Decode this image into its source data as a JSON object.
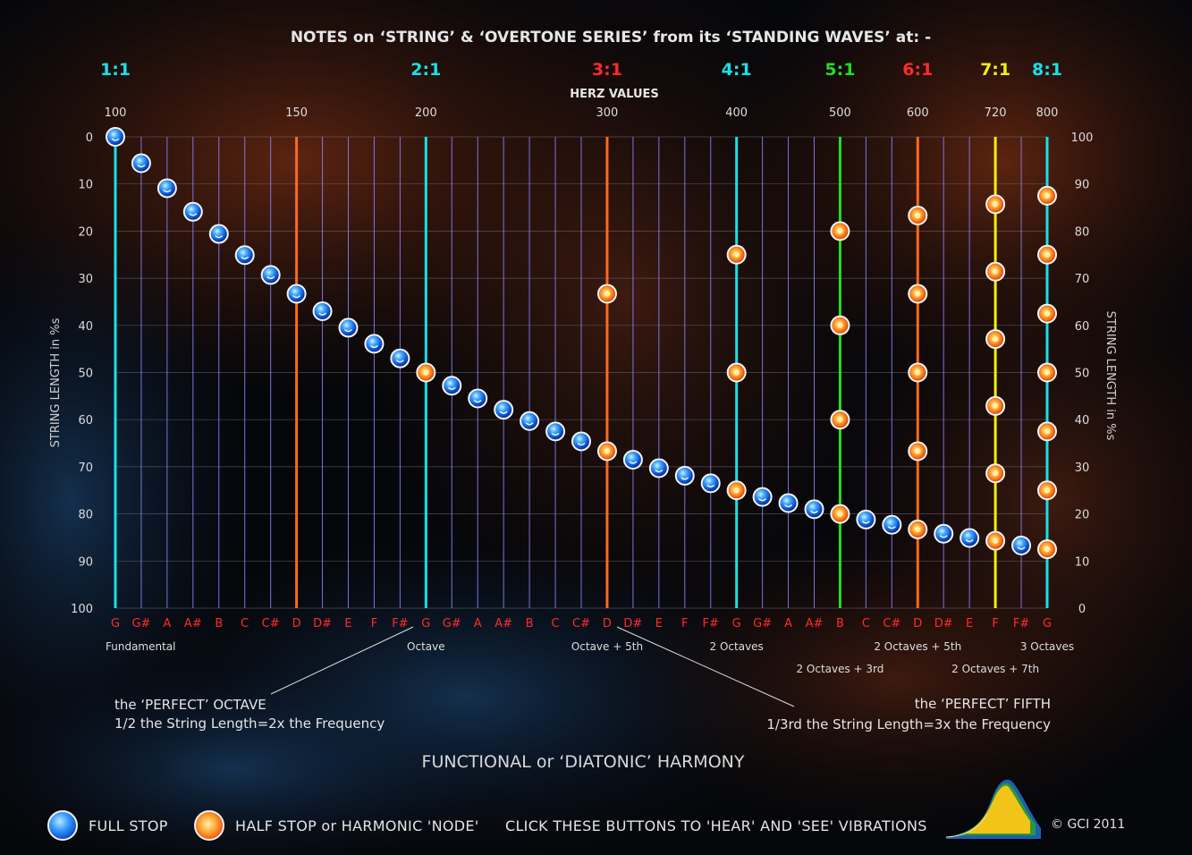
{
  "title": "NOTES on ‘STRING’ & ‘OVERTONE SERIES’ from its ‘STANDING WAVES’ at: -",
  "herz_label": "HERZ  VALUES",
  "left_axis_label": "STRING LENGTH in %s",
  "right_axis_label": "STRING LENGTH in %s",
  "colors": {
    "cyan": "#19e0e8",
    "orange": "#ff6a1a",
    "green": "#22dd22",
    "yellow": "#f5ee10",
    "red_text": "#ff2a2a",
    "grid_purple": "#8a86ff"
  },
  "ratios": [
    {
      "label": "1:1",
      "color": "#19e0e8",
      "at": 0
    },
    {
      "label": "2:1",
      "color": "#19e0e8",
      "at": 12
    },
    {
      "label": "3:1",
      "color": "#ff2a2a",
      "at": 19
    },
    {
      "label": "4:1",
      "color": "#19e0e8",
      "at": 24
    },
    {
      "label": "5:1",
      "color": "#22dd22",
      "at": 28
    },
    {
      "label": "6:1",
      "color": "#ff2a2a",
      "at": 31
    },
    {
      "label": "7:1",
      "color": "#f5ee10",
      "at": 34
    },
    {
      "label": "8:1",
      "color": "#19e0e8",
      "at": 36
    }
  ],
  "herz_ticks": [
    {
      "label": "100",
      "at": 0
    },
    {
      "label": "150",
      "at": 7
    },
    {
      "label": "200",
      "at": 12
    },
    {
      "label": "300",
      "at": 19
    },
    {
      "label": "400",
      "at": 24
    },
    {
      "label": "500",
      "at": 28
    },
    {
      "label": "600",
      "at": 31
    },
    {
      "label": "720",
      "at": 34
    },
    {
      "label": "800",
      "at": 36
    }
  ],
  "left_ticks": [
    "0",
    "10",
    "20",
    "30",
    "40",
    "50",
    "60",
    "70",
    "80",
    "90",
    "100"
  ],
  "right_ticks": [
    "100",
    "90",
    "80",
    "70",
    "60",
    "50",
    "40",
    "30",
    "20",
    "10",
    "0"
  ],
  "notes": [
    "G",
    "G#",
    "A",
    "A#",
    "B",
    "C",
    "C#",
    "D",
    "D#",
    "E",
    "F",
    "F#",
    "G",
    "G#",
    "A",
    "A#",
    "B",
    "C",
    "C#",
    "D",
    "D#",
    "E",
    "F",
    "F#",
    "G",
    "G#",
    "A",
    "A#",
    "B",
    "C",
    "C#",
    "D",
    "D#",
    "E",
    "F",
    "F#",
    "G"
  ],
  "colored_lines": [
    {
      "at": 0,
      "color": "#19e0e8"
    },
    {
      "at": 7,
      "color": "#ff6a1a"
    },
    {
      "at": 12,
      "color": "#19e0e8"
    },
    {
      "at": 19,
      "color": "#ff6a1a"
    },
    {
      "at": 24,
      "color": "#19e0e8"
    },
    {
      "at": 28,
      "color": "#22dd22"
    },
    {
      "at": 31,
      "color": "#ff6a1a"
    },
    {
      "at": 34,
      "color": "#f5ee10"
    },
    {
      "at": 36,
      "color": "#19e0e8"
    }
  ],
  "chart_data": {
    "type": "scatter",
    "title": "NOTES on ‘STRING’ & ‘OVERTONE SERIES’ from its ‘STANDING WAVES’ at: -",
    "ylabel": "STRING LENGTH in %s",
    "ylim": [
      0,
      100
    ],
    "full_stops": [
      {
        "note": "G",
        "y": 0
      },
      {
        "note": "G#",
        "y": 5.6
      },
      {
        "note": "A",
        "y": 10.9
      },
      {
        "note": "A#",
        "y": 15.9
      },
      {
        "note": "B",
        "y": 20.6
      },
      {
        "note": "C",
        "y": 25.1
      },
      {
        "note": "C#",
        "y": 29.3
      },
      {
        "note": "D",
        "y": 33.3
      },
      {
        "note": "D#",
        "y": 37.0
      },
      {
        "note": "E",
        "y": 40.5
      },
      {
        "note": "F",
        "y": 43.9
      },
      {
        "note": "F#",
        "y": 47.0
      },
      {
        "note": "G#",
        "y": 52.8
      },
      {
        "note": "A",
        "y": 55.5
      },
      {
        "note": "A#",
        "y": 57.9
      },
      {
        "note": "B",
        "y": 60.3
      },
      {
        "note": "C",
        "y": 62.5
      },
      {
        "note": "C#",
        "y": 64.6
      },
      {
        "note": "D#",
        "y": 68.5
      },
      {
        "note": "E",
        "y": 70.3
      },
      {
        "note": "F",
        "y": 71.9
      },
      {
        "note": "F#",
        "y": 73.5
      },
      {
        "note": "G#",
        "y": 76.4
      },
      {
        "note": "A",
        "y": 77.7
      },
      {
        "note": "A#",
        "y": 79.0
      },
      {
        "note": "C",
        "y": 81.2
      },
      {
        "note": "C#",
        "y": 82.3
      },
      {
        "note": "D#",
        "y": 84.2
      },
      {
        "note": "E",
        "y": 85.1
      },
      {
        "note": "F#",
        "y": 86.7
      }
    ],
    "half_stops": [
      {
        "note": "G",
        "ratio": "2:1",
        "y": [
          50
        ]
      },
      {
        "note": "D",
        "ratio": "3:1",
        "y": [
          33.3,
          66.7
        ]
      },
      {
        "note": "G",
        "ratio": "4:1",
        "y": [
          25,
          50,
          75
        ]
      },
      {
        "note": "B",
        "ratio": "5:1",
        "y": [
          20,
          40,
          60,
          80
        ]
      },
      {
        "note": "D",
        "ratio": "6:1",
        "y": [
          16.7,
          33.3,
          50,
          66.7,
          83.3
        ]
      },
      {
        "note": "F",
        "ratio": "7:1",
        "y": [
          14.3,
          28.6,
          42.9,
          57.1,
          71.4,
          85.7
        ]
      },
      {
        "note": "G",
        "ratio": "8:1",
        "y": [
          12.5,
          25,
          37.5,
          50,
          62.5,
          75,
          87.5
        ]
      }
    ]
  },
  "interval_labels": [
    {
      "text": "Fundamental",
      "at": 0,
      "row": 1
    },
    {
      "text": "Octave",
      "at": 12,
      "row": 1
    },
    {
      "text": "Octave + 5th",
      "at": 19,
      "row": 1
    },
    {
      "text": "2 Octaves",
      "at": 24,
      "row": 1
    },
    {
      "text": "2 Octaves + 3rd",
      "at": 28,
      "row": 2
    },
    {
      "text": "2 Octaves + 5th",
      "at": 31,
      "row": 1
    },
    {
      "text": "2 Octaves + 7th",
      "at": 34,
      "row": 2
    },
    {
      "text": "3 Octaves",
      "at": 36,
      "row": 1
    }
  ],
  "perfect_octave": {
    "title": "the ‘PERFECT’ OCTAVE",
    "desc": "1/2 the String Length=2x the Frequency"
  },
  "perfect_fifth": {
    "title": "the ‘PERFECT’ FIFTH",
    "desc": "1/3rd the String Length=3x the Frequency"
  },
  "harmony_title": "FUNCTIONAL or ‘DIATONIC’ HARMONY",
  "legend": {
    "full_stop": "FULL STOP",
    "half_stop": "HALF STOP or HARMONIC 'NODE'",
    "click_hint": "CLICK THESE BUTTONS TO 'HEAR' AND 'SEE' VIBRATIONS"
  },
  "copyright": "© GCI 2011"
}
